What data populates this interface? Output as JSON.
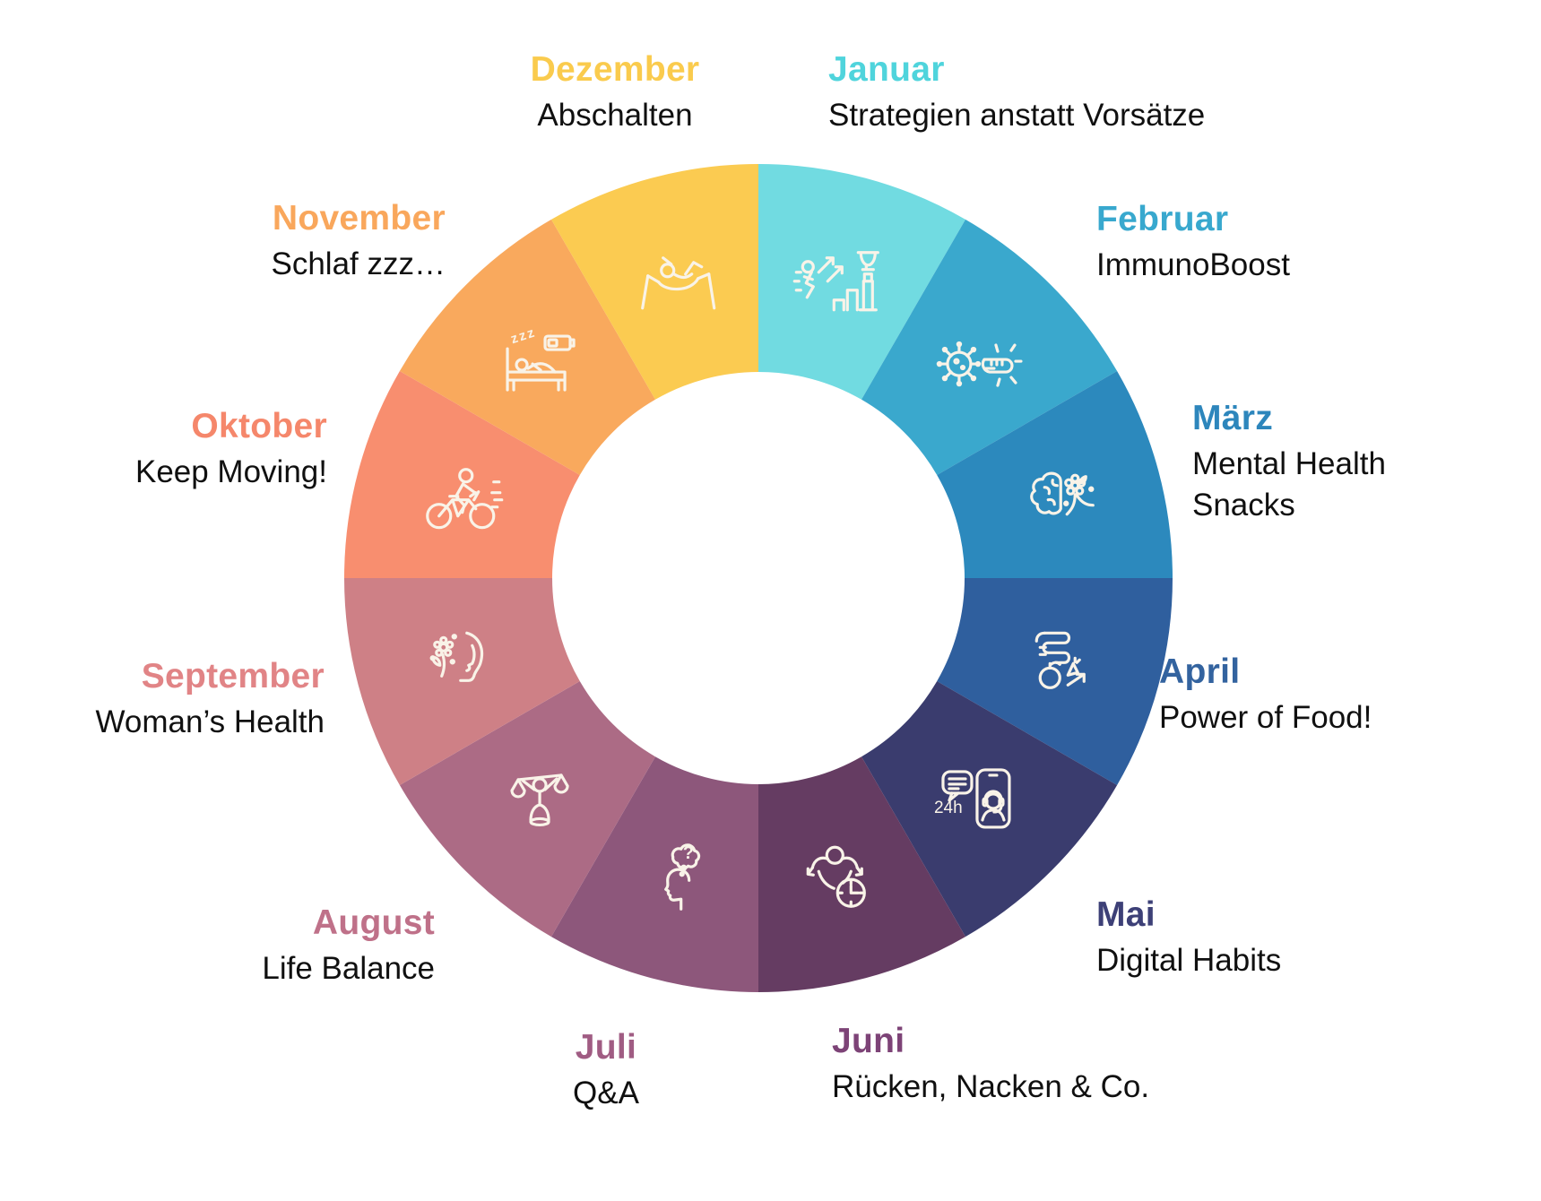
{
  "wheel": {
    "description": "Jahresrad mit 12 Monats-Themen",
    "icon_stroke_color": "#F9F3E8",
    "months": [
      {
        "name": "Januar",
        "topic": "Strategien anstatt Vorsätze",
        "segment_color": "#71DBE1",
        "label_color": "#4FD4DC",
        "icon": "success-progress-icon",
        "icon_text": ""
      },
      {
        "name": "Februar",
        "topic": "ImmunoBoost",
        "segment_color": "#3AA8CD",
        "label_color": "#38A8CE",
        "icon": "immune-defense-icon",
        "icon_text": ""
      },
      {
        "name": "März",
        "topic": "Mental Health\nSnacks",
        "segment_color": "#2C89BD",
        "label_color": "#2D86BC",
        "icon": "mindful-brain-icon",
        "icon_text": ""
      },
      {
        "name": "April",
        "topic": "Power of Food!",
        "segment_color": "#2F5F9E",
        "label_color": "#33639F",
        "icon": "gut-health-icon",
        "icon_text": ""
      },
      {
        "name": "Mai",
        "topic": "Digital Habits",
        "segment_color": "#3A3C6E",
        "label_color": "#3D4077",
        "icon": "digital-support-icon",
        "icon_text": "24h"
      },
      {
        "name": "Juni",
        "topic": "Rücken, Nacken & Co.",
        "segment_color": "#653C62",
        "label_color": "#7D4377",
        "icon": "stretch-relax-icon",
        "icon_text": ""
      },
      {
        "name": "Juli",
        "topic": "Q&A",
        "segment_color": "#8D577B",
        "label_color": "#A05C83",
        "icon": "questions-icon",
        "icon_text": "?"
      },
      {
        "name": "August",
        "topic": "Life Balance",
        "segment_color": "#AC6B85",
        "label_color": "#BF7189",
        "icon": "balance-icon",
        "icon_text": ""
      },
      {
        "name": "September",
        "topic": "Woman’s Health",
        "segment_color": "#CE8086",
        "label_color": "#E18486",
        "icon": "womans-health-icon",
        "icon_text": ""
      },
      {
        "name": "Oktober",
        "topic": "Keep Moving!",
        "segment_color": "#F88E6F",
        "label_color": "#F5876B",
        "icon": "cycling-icon",
        "icon_text": ""
      },
      {
        "name": "November",
        "topic": "Schlaf zzz…",
        "segment_color": "#F9A95D",
        "label_color": "#F9A75C",
        "icon": "sleep-icon",
        "icon_text": "zzz"
      },
      {
        "name": "Dezember",
        "topic": "Abschalten",
        "segment_color": "#FBCB51",
        "label_color": "#FACB4D",
        "icon": "hammock-icon",
        "icon_text": ""
      }
    ]
  }
}
